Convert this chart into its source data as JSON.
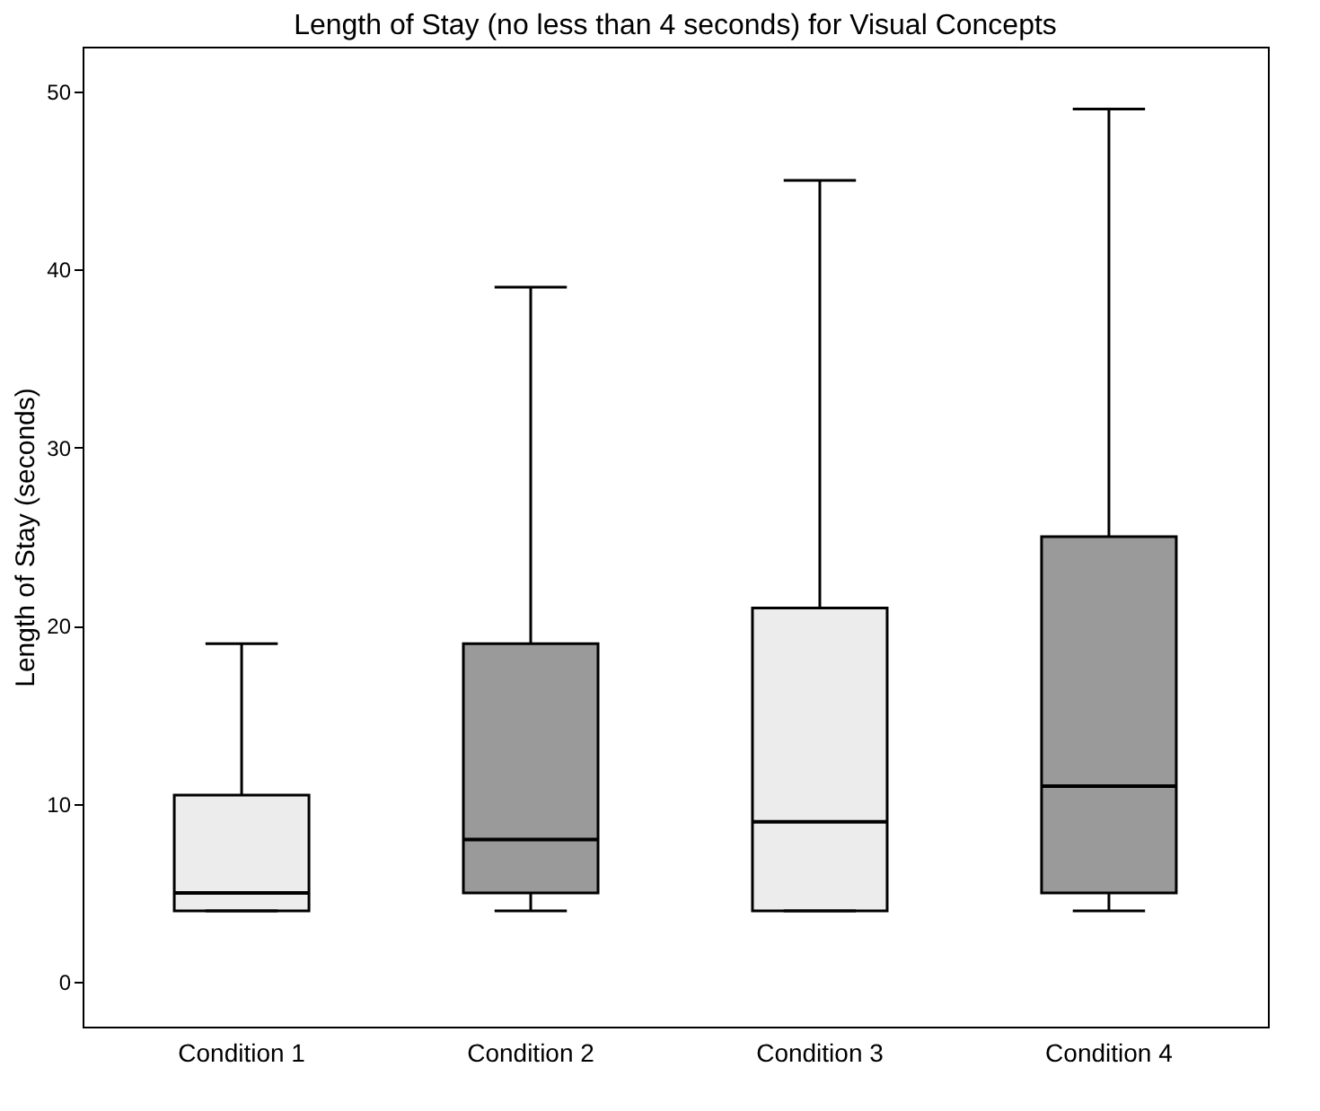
{
  "chart_data": {
    "type": "box",
    "title": "Length of Stay (no less than 4 seconds) for Visual Concepts",
    "ylabel": "Length of Stay (seconds)",
    "categories": [
      "Condition 1",
      "Condition 2",
      "Condition 3",
      "Condition 4"
    ],
    "boxes": [
      {
        "low": 4,
        "q1": 4,
        "median": 5,
        "q3": 10.5,
        "high": 19
      },
      {
        "low": 4,
        "q1": 5,
        "median": 8,
        "q3": 19,
        "high": 39
      },
      {
        "low": 4,
        "q1": 4,
        "median": 9,
        "q3": 21,
        "high": 45
      },
      {
        "low": 4,
        "q1": 5,
        "median": 11,
        "q3": 25,
        "high": 49
      }
    ],
    "colors": [
      "#ececec",
      "#9a9a9a",
      "#ececec",
      "#9a9a9a"
    ],
    "ylim": [
      -2.5,
      52.5
    ],
    "yticks": [
      0,
      10,
      20,
      30,
      40,
      50
    ],
    "grid": false,
    "legend": false
  }
}
